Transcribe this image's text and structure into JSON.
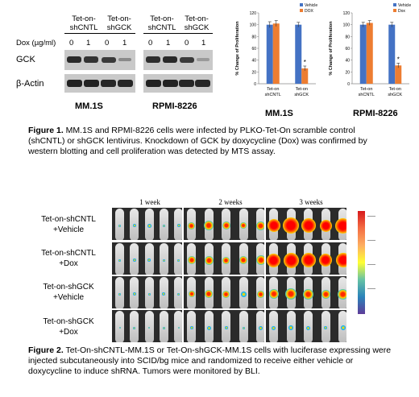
{
  "fig1": {
    "blot": {
      "group_left": [
        "Tet-on-",
        "shCNTL"
      ],
      "group_mid": [
        "Tet-on-",
        "shGCK"
      ],
      "group_r1": [
        "Tet-on-",
        "shCNTL"
      ],
      "group_r2": [
        "Tet-on-",
        "shGCK"
      ],
      "dox_label": "Dox  (µg/ml)",
      "dox_values": [
        "0",
        "1",
        "0",
        "1",
        "0",
        "1",
        "0",
        "1"
      ],
      "gck_label": "GCK",
      "actin_label": "β-Actin",
      "cell_left": "MM.1S",
      "cell_right": "RPMI-8226"
    },
    "chart_left_title": "MM.1S",
    "chart_right_title": "RPMI-8226",
    "caption_bold": "Figure 1.",
    "caption_text": "  MM.1S and RPMI-8226 cells were infected by PLKO-Tet-On scramble control (shCNTL) or shGCK lentivirus. Knockdown of GCK by doxycycline (Dox) was confirmed by western blotting and cell proliferation was detected by MTS assay."
  },
  "chart_data": [
    {
      "type": "bar",
      "categories": [
        "Tet-on shCNTL",
        "Tet-on shGCK"
      ],
      "series": [
        {
          "name": "Vehicle",
          "values": [
            100,
            100
          ],
          "errors": [
            5,
            4
          ]
        },
        {
          "name": "DOX",
          "values": [
            102,
            26
          ],
          "errors": [
            5,
            4
          ]
        }
      ],
      "xlabel": "",
      "ylabel": "% Change of Proliferation",
      "ylim": [
        0,
        120
      ],
      "yticks": [
        "0",
        "20",
        "40",
        "60",
        "80",
        "100",
        "120"
      ],
      "significance": "*",
      "legend": "top-right",
      "colors": {
        "Vehicle": "#4472c4",
        "DOX": "#ed7d31"
      }
    },
    {
      "type": "bar",
      "categories": [
        "Tet-on shCNTL",
        "Tet-on shGCK"
      ],
      "series": [
        {
          "name": "Vehicle",
          "values": [
            100,
            100
          ],
          "errors": [
            4,
            4
          ]
        },
        {
          "name": "Dox",
          "values": [
            103,
            31
          ],
          "errors": [
            4,
            4
          ]
        }
      ],
      "xlabel": "",
      "ylabel": "% Change of Proliferation",
      "ylim": [
        0,
        120
      ],
      "yticks": [
        "0",
        "20",
        "40",
        "60",
        "80",
        "100",
        "120"
      ],
      "significance": "*",
      "legend": "top-right",
      "colors": {
        "Vehicle": "#4472c4",
        "Dox": "#ed7d31"
      }
    }
  ],
  "fig2": {
    "weeks": [
      "1 week",
      "2 weeks",
      "3 weeks"
    ],
    "rows": [
      [
        "Tet-on-shCNTL",
        "+Vehicle"
      ],
      [
        "Tet-on-shCNTL",
        "+Dox"
      ],
      [
        "Tet-on-shGCK",
        "+Vehicle"
      ],
      [
        "Tet-on-shGCK",
        "+Dox"
      ]
    ],
    "caption_bold": "Figure 2.",
    "caption_text": "  Tet-On-shCNTL-MM.1S or Tet-On-shGCK-MM.1S cells with luciferase expressing were injected subcutaneously into SCID/bg mice and randomized to receive either vehicle or doxycycline to induce shRNA. Tumors were monitored by BLI."
  }
}
